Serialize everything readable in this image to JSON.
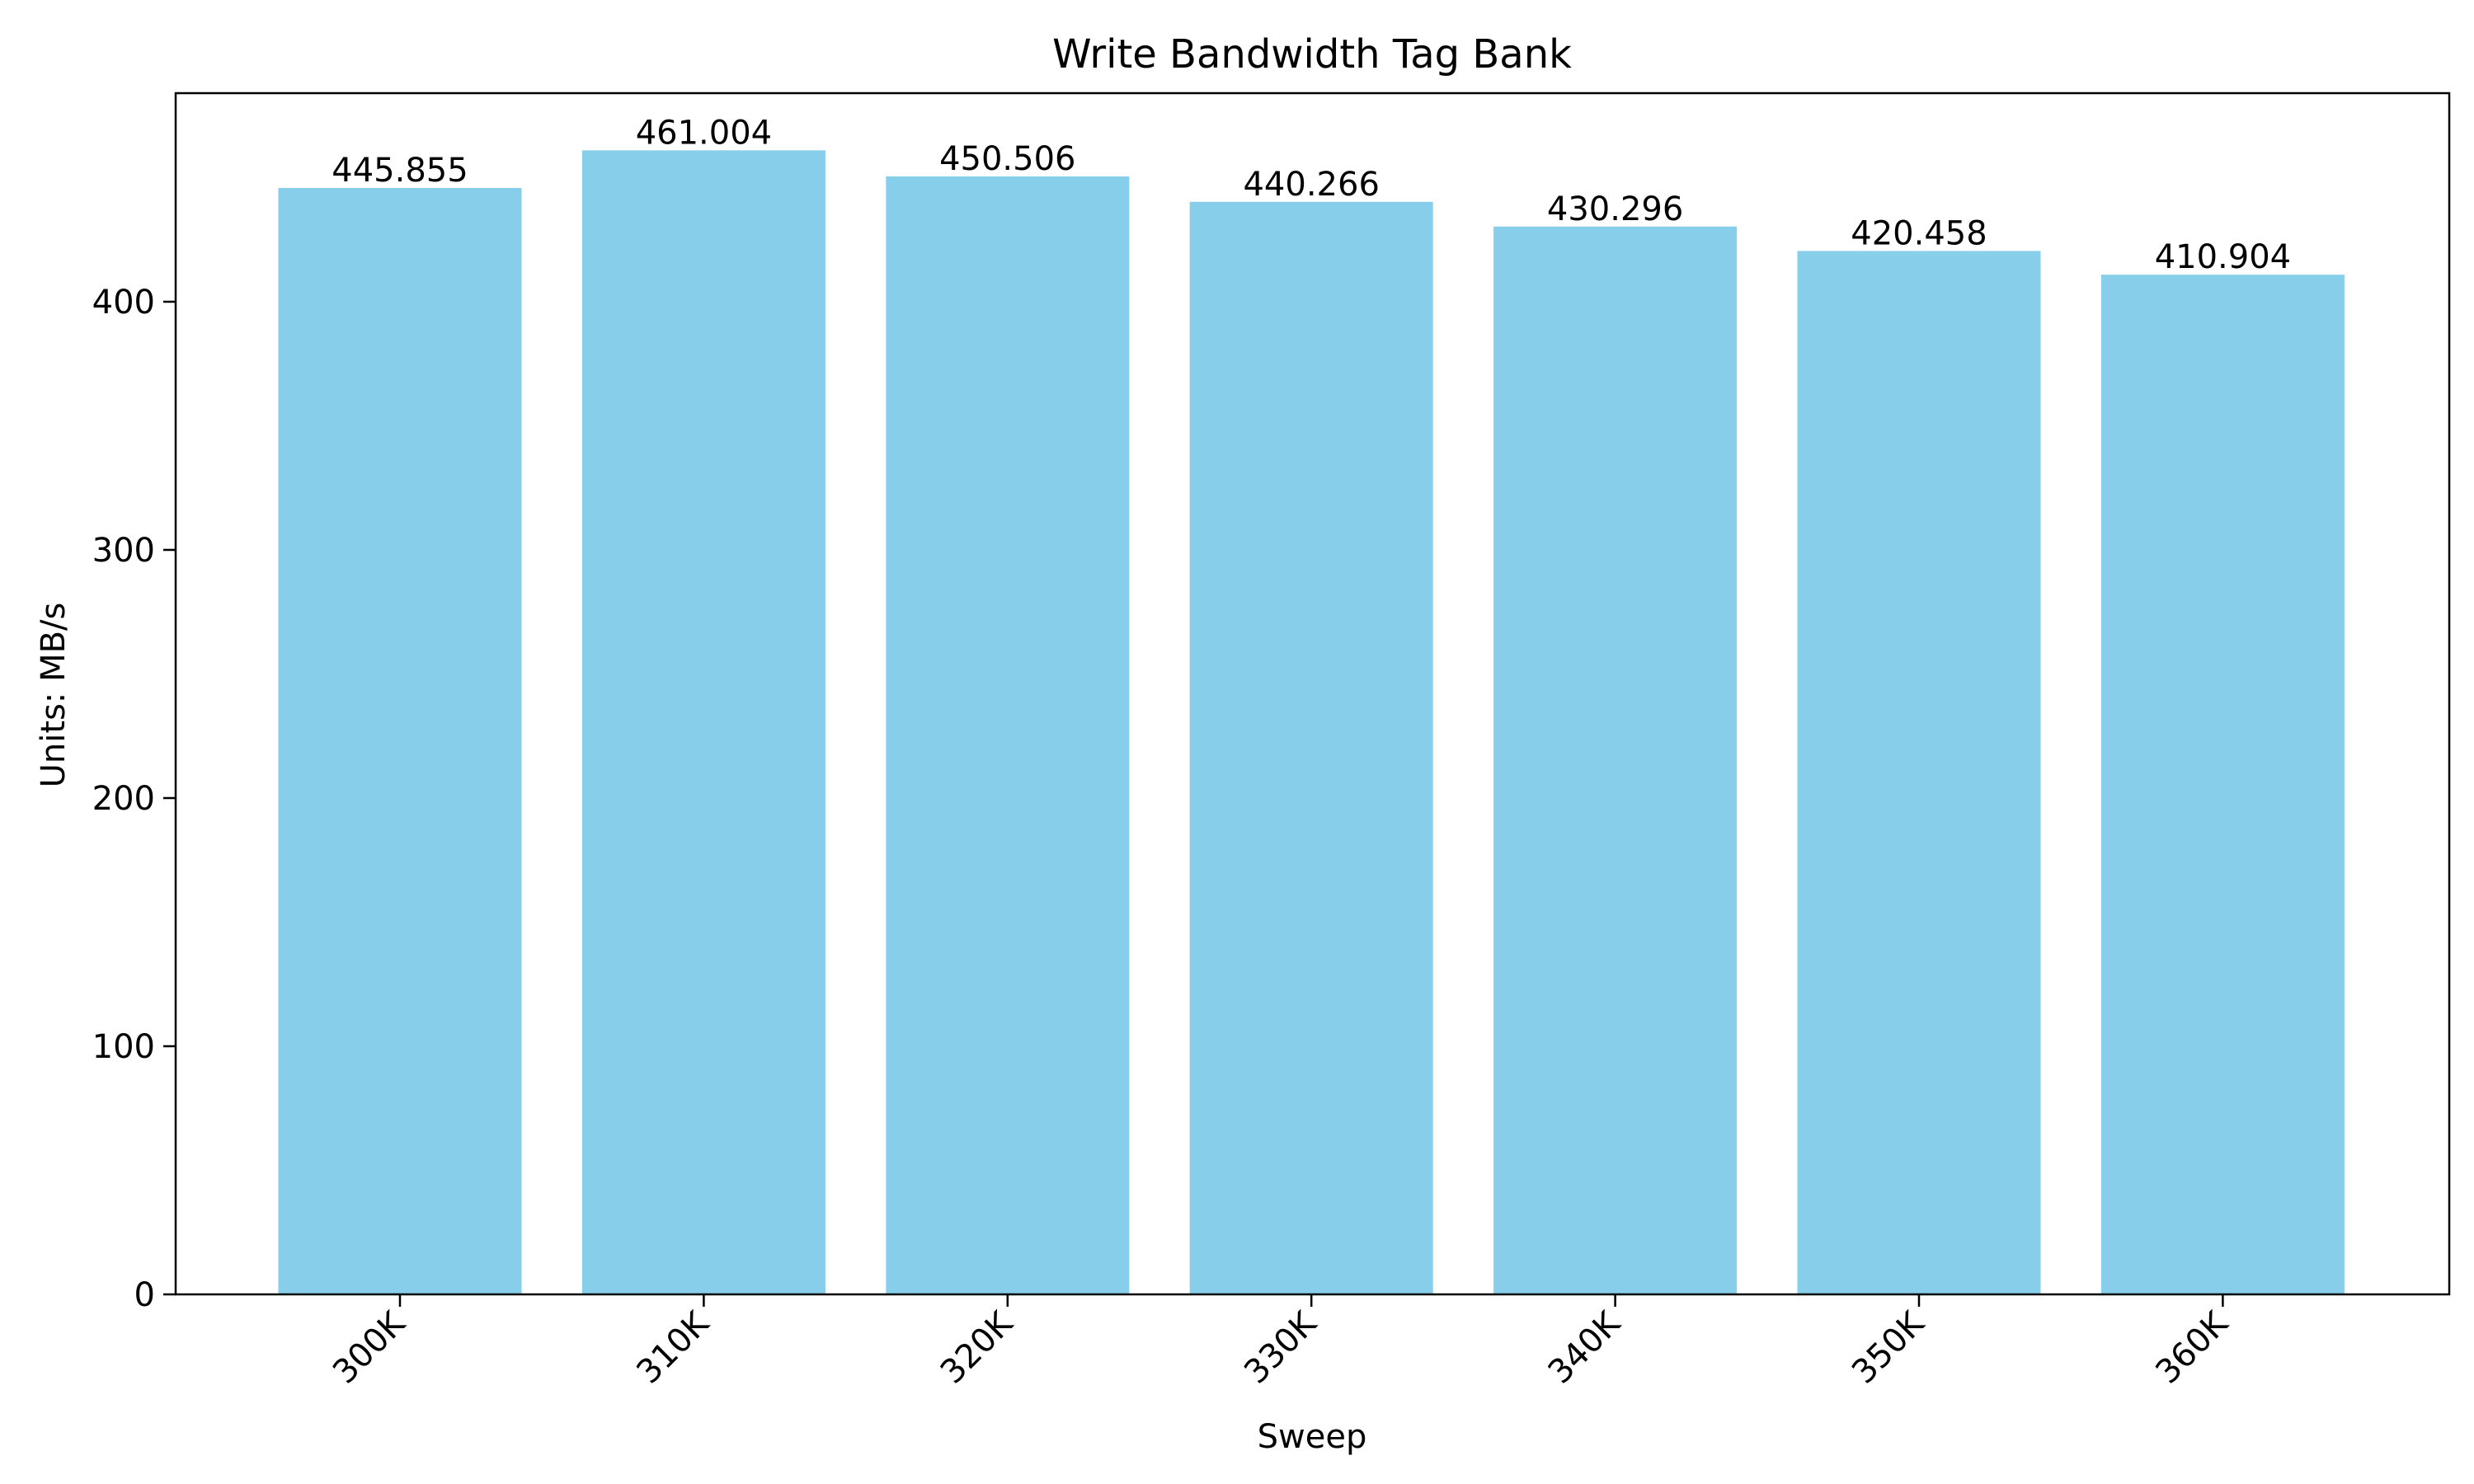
{
  "chart_data": {
    "type": "bar",
    "title": "Write Bandwidth Tag Bank",
    "xlabel": "Sweep",
    "ylabel": "Units: MB/s",
    "categories": [
      "300K",
      "310K",
      "320K",
      "330K",
      "340K",
      "350K",
      "360K"
    ],
    "values": [
      445.855,
      461.004,
      450.506,
      440.266,
      430.296,
      420.458,
      410.904
    ],
    "value_labels": [
      "445.855",
      "461.004",
      "450.506",
      "440.266",
      "430.296",
      "420.458",
      "410.904"
    ],
    "yticks": [
      0,
      100,
      200,
      300,
      400
    ],
    "ytick_labels": [
      "0",
      "100",
      "200",
      "300",
      "400"
    ],
    "ylim": [
      0,
      484.05
    ],
    "bar_color": "#87CEEB",
    "grid": false,
    "legend": "none"
  }
}
